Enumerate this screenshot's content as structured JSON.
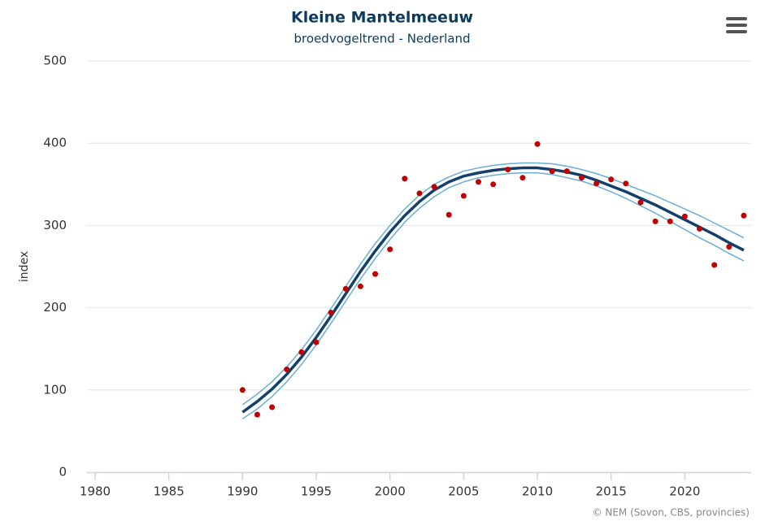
{
  "chart_data": {
    "type": "line",
    "title": "Kleine Mantelmeeuw",
    "subtitle": "broedvogeltrend - Nederland",
    "y_label": "index",
    "credit": "© NEM (Sovon, CBS, provincies)",
    "x": [
      1990,
      1991,
      1992,
      1993,
      1994,
      1995,
      1996,
      1997,
      1998,
      1999,
      2000,
      2001,
      2002,
      2003,
      2004,
      2005,
      2006,
      2007,
      2008,
      2009,
      2010,
      2011,
      2012,
      2013,
      2014,
      2015,
      2016,
      2017,
      2018,
      2019,
      2020,
      2021,
      2022,
      2023,
      2024
    ],
    "series": [
      {
        "type": "line",
        "color": "#6aaed6",
        "width": 1.5,
        "values": [
          82,
          95,
          110,
          128,
          149,
          173,
          199,
          226,
          253,
          278,
          300,
          320,
          337,
          350,
          359,
          366,
          370,
          373,
          375,
          376,
          376,
          375,
          372,
          368,
          363,
          357,
          350,
          343,
          336,
          328,
          320,
          312,
          303,
          294,
          285
        ]
      },
      {
        "type": "line",
        "color": "#6aaed6",
        "width": 1.5,
        "values": [
          65,
          77,
          92,
          110,
          131,
          155,
          181,
          208,
          235,
          260,
          283,
          304,
          321,
          335,
          346,
          353,
          358,
          361,
          363,
          364,
          364,
          362,
          358,
          354,
          348,
          341,
          333,
          324,
          315,
          305,
          295,
          285,
          276,
          266,
          257
        ]
      },
      {
        "type": "line",
        "color": "#12406b",
        "width": 3.5,
        "values": [
          73,
          86,
          101,
          119,
          140,
          164,
          190,
          217,
          244,
          269,
          292,
          312,
          329,
          343,
          353,
          360,
          364,
          367,
          369,
          370,
          370,
          368,
          365,
          361,
          355,
          348,
          341,
          333,
          325,
          316,
          307,
          298,
          289,
          279,
          270
        ]
      },
      {
        "type": "scatter",
        "color": "#c00000",
        "values": [
          100,
          70,
          79,
          125,
          146,
          158,
          194,
          223,
          226,
          241,
          271,
          357,
          339,
          347,
          313,
          336,
          353,
          350,
          368,
          358,
          399,
          366,
          366,
          358,
          351,
          356,
          351,
          328,
          305,
          305,
          311,
          296,
          252,
          274,
          312
        ]
      }
    ],
    "xlim": [
      1980,
      2024.5
    ],
    "xticks": [
      1980,
      1985,
      1990,
      1995,
      2000,
      2005,
      2010,
      2015,
      2020
    ],
    "ylim": [
      0,
      500
    ],
    "yticks": [
      0,
      100,
      200,
      300,
      400,
      500
    ],
    "grid": true
  }
}
